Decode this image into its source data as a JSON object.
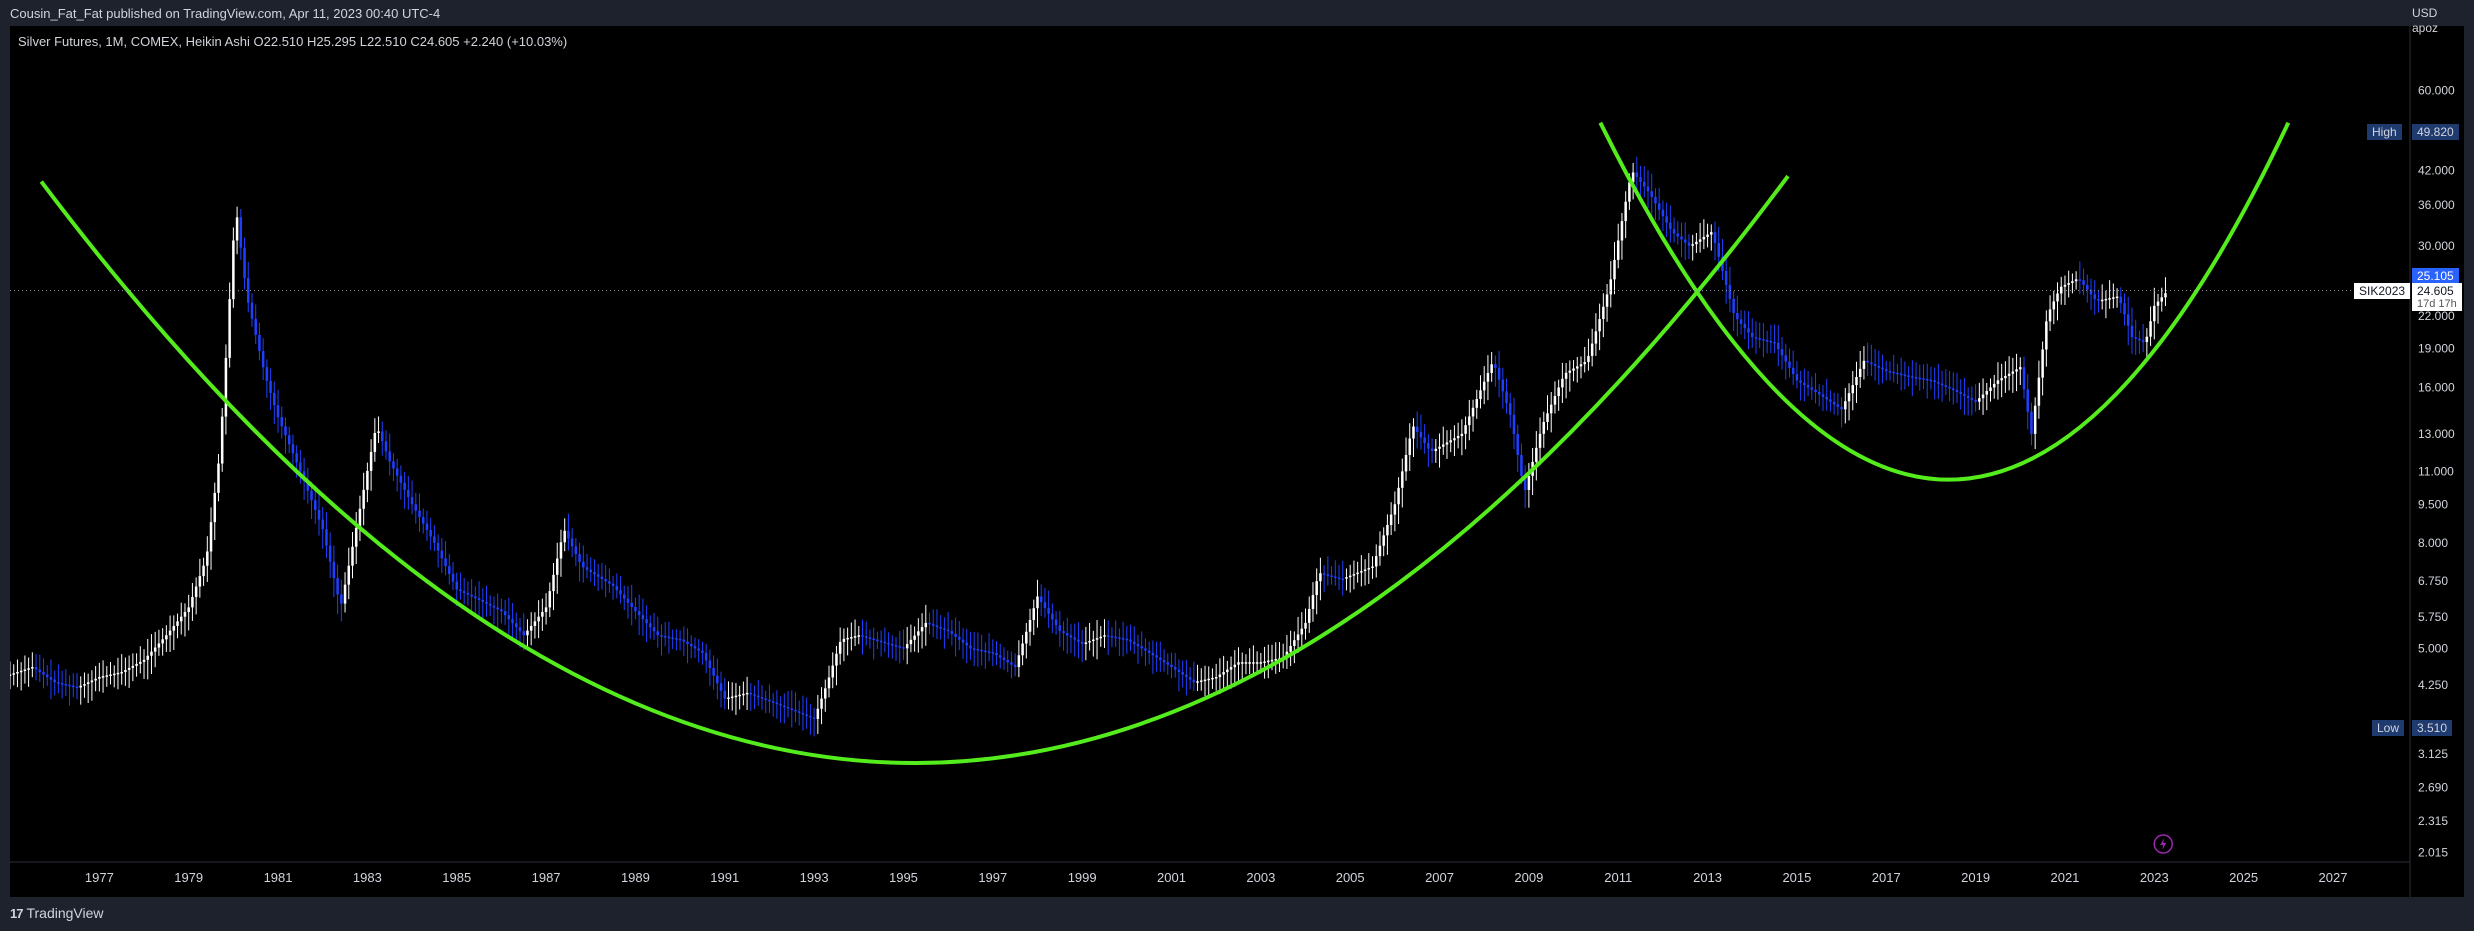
{
  "header": {
    "publish_note": "Cousin_Fat_Fat published on TradingView.com, Apr 11, 2023 00:40 UTC-4"
  },
  "legend": {
    "text": "Silver Futures, 1M, COMEX, Heikin Ashi  O22.510  H25.295  L22.510  C24.605  +2.240 (+10.03%)"
  },
  "price_axis": {
    "currency": "USD",
    "unit": "apoz",
    "high_label": "High",
    "high_value": "49.820",
    "low_label": "Low",
    "low_value": "3.510",
    "blue_tag_value": "25.105",
    "current_symbol": "SIK2023",
    "current_value": "24.605",
    "countdown": "17d 17h"
  },
  "footer": {
    "brand": "TradingView",
    "logo_glyph": "17"
  },
  "colors": {
    "background": "#000000",
    "bull_candle": "#ffffff",
    "bear_candle": "#1f3fff",
    "arc": "#54ec1c",
    "high_pill": "#1e3a6e",
    "current_pill": "#ffffff",
    "blue_tag": "#2962ff"
  },
  "chart_data": {
    "type": "candlestick",
    "style": "Heikin Ashi",
    "scale": "log",
    "ylim": [
      2.0,
      80.0
    ],
    "xlim": [
      1975.0,
      2028.5
    ],
    "x_ticks": [
      "1977",
      "1979",
      "1981",
      "1983",
      "1985",
      "1987",
      "1989",
      "1991",
      "1993",
      "1995",
      "1997",
      "1999",
      "2001",
      "2003",
      "2005",
      "2007",
      "2009",
      "2011",
      "2013",
      "2015",
      "2017",
      "2019",
      "2021",
      "2023",
      "2025",
      "2027"
    ],
    "y_ticks": [
      "60.000",
      "42.000",
      "36.000",
      "30.000",
      "22.000",
      "19.000",
      "16.000",
      "13.000",
      "11.000",
      "9.500",
      "8.000",
      "6.750",
      "5.750",
      "5.000",
      "4.250",
      "3.125",
      "2.690",
      "2.315",
      "2.015"
    ],
    "price_path": [
      [
        1975.0,
        4.45
      ],
      [
        1975.5,
        4.6
      ],
      [
        1976.0,
        4.3
      ],
      [
        1976.5,
        4.2
      ],
      [
        1977.0,
        4.4
      ],
      [
        1977.5,
        4.5
      ],
      [
        1978.0,
        4.75
      ],
      [
        1978.5,
        5.3
      ],
      [
        1979.0,
        6.0
      ],
      [
        1979.4,
        7.5
      ],
      [
        1979.7,
        12.0
      ],
      [
        1980.05,
        36.0
      ],
      [
        1980.3,
        24.0
      ],
      [
        1980.7,
        17.0
      ],
      [
        1981.0,
        14.0
      ],
      [
        1981.5,
        11.0
      ],
      [
        1982.0,
        8.5
      ],
      [
        1982.4,
        6.0
      ],
      [
        1982.8,
        9.0
      ],
      [
        1983.2,
        13.5
      ],
      [
        1983.5,
        11.5
      ],
      [
        1984.0,
        9.5
      ],
      [
        1984.5,
        8.0
      ],
      [
        1985.0,
        6.5
      ],
      [
        1985.5,
        6.2
      ],
      [
        1986.0,
        5.9
      ],
      [
        1986.5,
        5.3
      ],
      [
        1987.0,
        6.0
      ],
      [
        1987.4,
        8.5
      ],
      [
        1987.8,
        7.2
      ],
      [
        1988.5,
        6.6
      ],
      [
        1989.0,
        5.9
      ],
      [
        1989.5,
        5.3
      ],
      [
        1990.0,
        5.2
      ],
      [
        1990.5,
        4.9
      ],
      [
        1991.0,
        4.0
      ],
      [
        1991.5,
        4.1
      ],
      [
        1992.0,
        3.95
      ],
      [
        1992.5,
        3.8
      ],
      [
        1993.0,
        3.65
      ],
      [
        1993.3,
        4.3
      ],
      [
        1993.6,
        5.2
      ],
      [
        1994.0,
        5.3
      ],
      [
        1995.0,
        5.0
      ],
      [
        1995.5,
        5.6
      ],
      [
        1996.0,
        5.4
      ],
      [
        1996.5,
        5.0
      ],
      [
        1997.0,
        4.9
      ],
      [
        1997.5,
        4.6
      ],
      [
        1998.0,
        6.3
      ],
      [
        1998.5,
        5.4
      ],
      [
        1999.0,
        5.1
      ],
      [
        1999.5,
        5.3
      ],
      [
        2000.0,
        5.2
      ],
      [
        2000.5,
        4.9
      ],
      [
        2001.0,
        4.6
      ],
      [
        2001.5,
        4.3
      ],
      [
        2002.0,
        4.4
      ],
      [
        2002.5,
        4.7
      ],
      [
        2003.0,
        4.7
      ],
      [
        2003.5,
        4.8
      ],
      [
        2004.0,
        5.6
      ],
      [
        2004.3,
        7.0
      ],
      [
        2004.8,
        6.8
      ],
      [
        2005.5,
        7.2
      ],
      [
        2006.0,
        9.5
      ],
      [
        2006.4,
        13.5
      ],
      [
        2006.8,
        12.0
      ],
      [
        2007.5,
        13.0
      ],
      [
        2008.2,
        18.0
      ],
      [
        2008.6,
        14.0
      ],
      [
        2008.9,
        10.0
      ],
      [
        2009.3,
        13.5
      ],
      [
        2009.8,
        17.0
      ],
      [
        2010.3,
        18.0
      ],
      [
        2010.8,
        25.0
      ],
      [
        2011.3,
        42.0
      ],
      [
        2011.7,
        38.0
      ],
      [
        2012.2,
        32.0
      ],
      [
        2012.6,
        30.0
      ],
      [
        2013.1,
        32.0
      ],
      [
        2013.6,
        22.0
      ],
      [
        2014.0,
        20.0
      ],
      [
        2014.5,
        19.5
      ],
      [
        2015.0,
        16.5
      ],
      [
        2015.5,
        15.5
      ],
      [
        2016.0,
        14.5
      ],
      [
        2016.5,
        18.0
      ],
      [
        2017.0,
        17.2
      ],
      [
        2017.5,
        16.8
      ],
      [
        2018.0,
        16.5
      ],
      [
        2018.5,
        15.8
      ],
      [
        2019.0,
        15.0
      ],
      [
        2019.5,
        16.5
      ],
      [
        2020.0,
        17.5
      ],
      [
        2020.25,
        13.0
      ],
      [
        2020.6,
        22.0
      ],
      [
        2020.9,
        25.0
      ],
      [
        2021.3,
        26.0
      ],
      [
        2021.7,
        23.5
      ],
      [
        2022.2,
        24.0
      ],
      [
        2022.5,
        20.0
      ],
      [
        2022.8,
        19.5
      ],
      [
        2023.0,
        23.0
      ],
      [
        2023.3,
        24.605
      ]
    ],
    "curves": [
      {
        "type": "arc",
        "points": [
          [
            1975.7,
            40.0
          ],
          [
            1995.3,
            3.0
          ],
          [
            2014.8,
            41.0
          ]
        ]
      },
      {
        "type": "arc",
        "points": [
          [
            2010.6,
            52.0
          ],
          [
            2018.4,
            10.6
          ],
          [
            2026.0,
            52.0
          ]
        ]
      }
    ]
  }
}
